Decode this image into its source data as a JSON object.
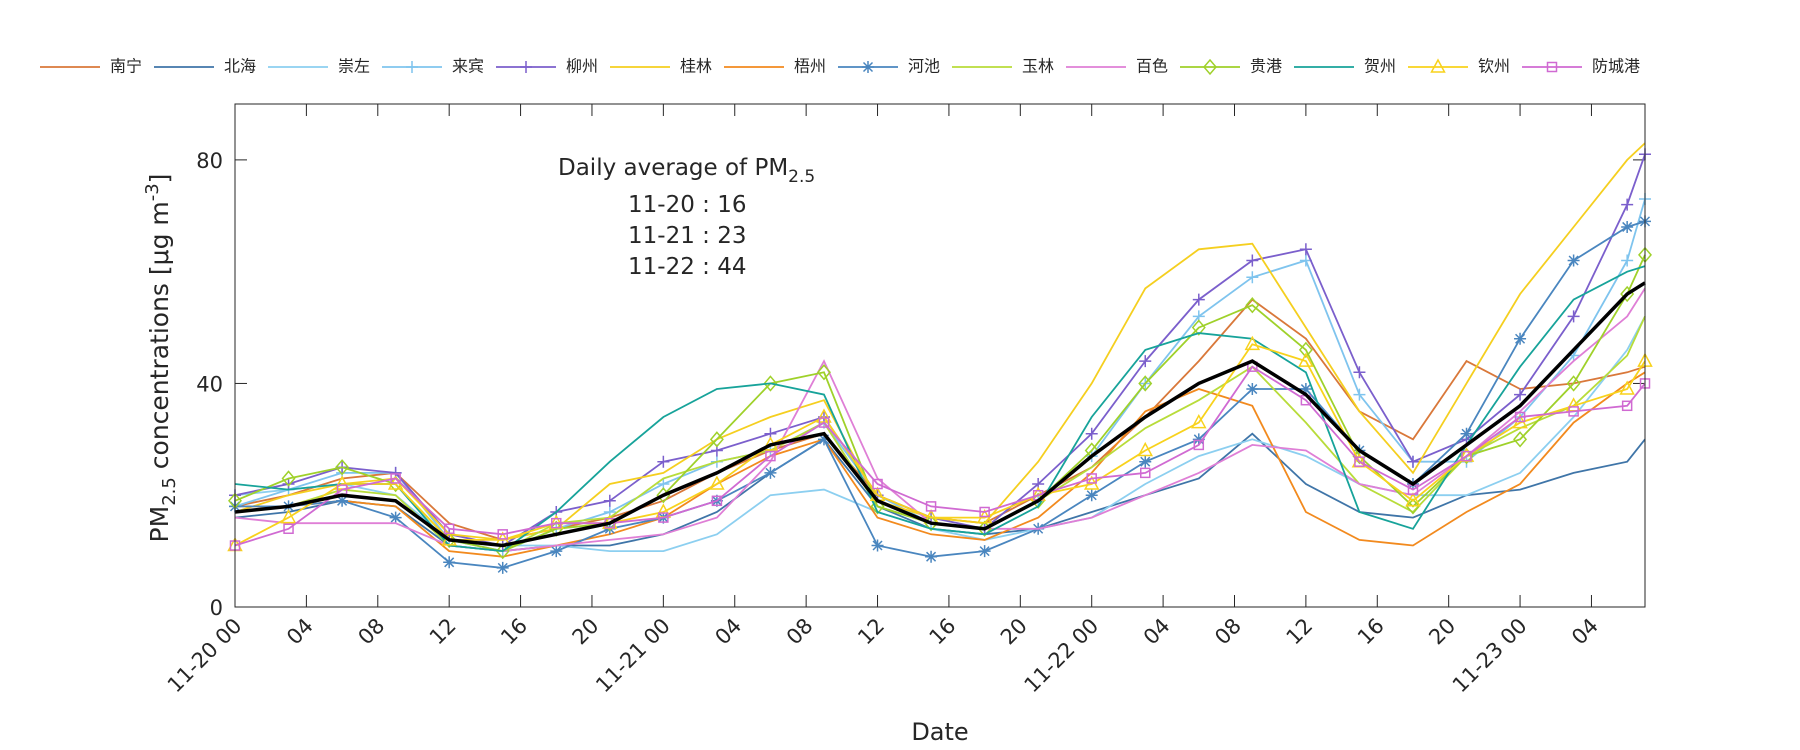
{
  "chart_data": {
    "type": "line",
    "xlabel": "Date",
    "ylabel": {
      "main": "PM",
      "sub": "2.5",
      "rest": " concentrations [μg m",
      "sup": "-3",
      "end": "]"
    },
    "annotation": {
      "title": "Daily average of PM",
      "subscript": "2.5",
      "lines": [
        "11-20 : 16",
        "11-21 : 23",
        "11-22 : 44"
      ]
    },
    "xlim": [
      0,
      79
    ],
    "ylim": [
      0,
      90
    ],
    "yticks": [
      0,
      40,
      80
    ],
    "xticks": [
      {
        "value": 0,
        "label": "11-20 00"
      },
      {
        "value": 4,
        "label": "04"
      },
      {
        "value": 8,
        "label": "08"
      },
      {
        "value": 12,
        "label": "12"
      },
      {
        "value": 16,
        "label": "16"
      },
      {
        "value": 20,
        "label": "20"
      },
      {
        "value": 24,
        "label": "11-21 00"
      },
      {
        "value": 28,
        "label": "04"
      },
      {
        "value": 32,
        "label": "08"
      },
      {
        "value": 36,
        "label": "12"
      },
      {
        "value": 40,
        "label": "16"
      },
      {
        "value": 44,
        "label": "20"
      },
      {
        "value": 48,
        "label": "11-22 00"
      },
      {
        "value": 52,
        "label": "04"
      },
      {
        "value": 56,
        "label": "08"
      },
      {
        "value": 60,
        "label": "12"
      },
      {
        "value": 64,
        "label": "16"
      },
      {
        "value": 68,
        "label": "20"
      },
      {
        "value": 72,
        "label": "11-23 00"
      },
      {
        "value": 76,
        "label": "04"
      }
    ],
    "x": [
      0,
      3,
      6,
      9,
      12,
      15,
      18,
      21,
      24,
      27,
      30,
      33,
      36,
      39,
      42,
      45,
      48,
      51,
      54,
      57,
      60,
      63,
      66,
      69,
      72,
      75,
      78,
      79
    ],
    "legend": "top",
    "series": [
      {
        "name": "南宁",
        "color": "#d9783a",
        "marker": "none",
        "values": [
          18,
          20,
          23,
          24,
          15,
          12,
          14,
          16,
          19,
          24,
          28,
          31,
          20,
          16,
          15,
          20,
          25,
          34,
          44,
          55,
          48,
          35,
          30,
          44,
          39,
          40,
          42,
          43
        ]
      },
      {
        "name": "北海",
        "color": "#3f75a8",
        "marker": "none",
        "values": [
          16,
          17,
          19,
          18,
          11,
          10,
          11,
          11,
          13,
          17,
          24,
          30,
          18,
          14,
          13,
          14,
          17,
          20,
          23,
          31,
          22,
          17,
          16,
          20,
          21,
          24,
          26,
          30
        ]
      },
      {
        "name": "崇左",
        "color": "#8ccff0",
        "marker": "none",
        "values": [
          20,
          21,
          22,
          20,
          12,
          11,
          11,
          10,
          10,
          13,
          20,
          21,
          17,
          14,
          12,
          14,
          16,
          22,
          27,
          30,
          27,
          22,
          20,
          20,
          24,
          34,
          46,
          52
        ]
      },
      {
        "name": "来宾",
        "color": "#7fc4ee",
        "marker": "plus",
        "values": [
          18,
          21,
          24,
          24,
          12,
          10,
          14,
          17,
          22,
          26,
          28,
          33,
          20,
          15,
          14,
          19,
          27,
          40,
          52,
          59,
          62,
          38,
          26,
          26,
          34,
          45,
          62,
          73
        ]
      },
      {
        "name": "柳州",
        "color": "#7b5fcc",
        "marker": "plus",
        "values": [
          20,
          22,
          25,
          24,
          13,
          11,
          17,
          19,
          26,
          28,
          31,
          34,
          20,
          16,
          14,
          22,
          31,
          44,
          55,
          62,
          64,
          42,
          26,
          30,
          38,
          52,
          72,
          81
        ]
      },
      {
        "name": "桂林",
        "color": "#f5cf1f",
        "marker": "none",
        "values": [
          17,
          20,
          22,
          23,
          13,
          12,
          14,
          22,
          24,
          30,
          34,
          37,
          19,
          16,
          15,
          26,
          40,
          57,
          64,
          65,
          50,
          35,
          24,
          40,
          56,
          68,
          80,
          83
        ]
      },
      {
        "name": "梧州",
        "color": "#f28a1e",
        "marker": "none",
        "values": [
          18,
          18,
          19,
          18,
          10,
          9,
          11,
          13,
          16,
          22,
          27,
          30,
          16,
          13,
          12,
          16,
          24,
          35,
          39,
          36,
          17,
          12,
          11,
          17,
          22,
          33,
          40,
          42
        ]
      },
      {
        "name": "河池",
        "color": "#4a86bf",
        "marker": "star",
        "values": [
          18,
          18,
          19,
          16,
          8,
          7,
          10,
          14,
          16,
          19,
          24,
          30,
          11,
          9,
          10,
          14,
          20,
          26,
          30,
          39,
          39,
          28,
          22,
          31,
          48,
          62,
          68,
          69
        ]
      },
      {
        "name": "玉林",
        "color": "#b8dc3a",
        "marker": "none",
        "values": [
          17,
          18,
          21,
          20,
          11,
          10,
          15,
          16,
          23,
          26,
          28,
          33,
          18,
          15,
          14,
          19,
          25,
          32,
          37,
          43,
          33,
          22,
          17,
          27,
          32,
          36,
          45,
          52
        ]
      },
      {
        "name": "百色",
        "color": "#df7fd6",
        "marker": "none",
        "values": [
          16,
          15,
          15,
          15,
          11,
          10,
          11,
          12,
          13,
          16,
          26,
          44,
          23,
          15,
          14,
          14,
          16,
          20,
          24,
          29,
          28,
          22,
          20,
          27,
          35,
          44,
          52,
          57
        ]
      },
      {
        "name": "贵港",
        "color": "#9fd12a",
        "marker": "diamond",
        "values": [
          19,
          23,
          25,
          22,
          12,
          10,
          14,
          15,
          20,
          30,
          40,
          42,
          18,
          15,
          14,
          19,
          28,
          40,
          50,
          54,
          46,
          27,
          18,
          27,
          30,
          40,
          56,
          63
        ]
      },
      {
        "name": "贺州",
        "color": "#17a39a",
        "marker": "none",
        "values": [
          22,
          21,
          22,
          22,
          11,
          10,
          17,
          26,
          34,
          39,
          40,
          38,
          17,
          14,
          13,
          18,
          34,
          46,
          49,
          48,
          42,
          17,
          14,
          29,
          43,
          55,
          60,
          61
        ]
      },
      {
        "name": "钦州",
        "color": "#f8d21c",
        "marker": "triangle",
        "values": [
          11,
          16,
          22,
          22,
          12,
          12,
          15,
          15,
          17,
          22,
          29,
          34,
          20,
          16,
          16,
          20,
          22,
          28,
          33,
          47,
          44,
          26,
          19,
          27,
          33,
          36,
          39,
          44
        ]
      },
      {
        "name": "防城港",
        "color": "#d06ad2",
        "marker": "square",
        "values": [
          11,
          14,
          21,
          23,
          14,
          13,
          15,
          15,
          16,
          19,
          27,
          33,
          22,
          18,
          17,
          20,
          23,
          24,
          29,
          43,
          37,
          26,
          21,
          27,
          34,
          35,
          36,
          40
        ]
      },
      {
        "color": "#000000",
        "marker": "none",
        "width": 3.5,
        "values": [
          17,
          18,
          20,
          19,
          12,
          11,
          13,
          15,
          20,
          24,
          29,
          31,
          19,
          15,
          14,
          19,
          27,
          34,
          40,
          44,
          38,
          28,
          22,
          29,
          36,
          46,
          56,
          58
        ]
      }
    ]
  }
}
